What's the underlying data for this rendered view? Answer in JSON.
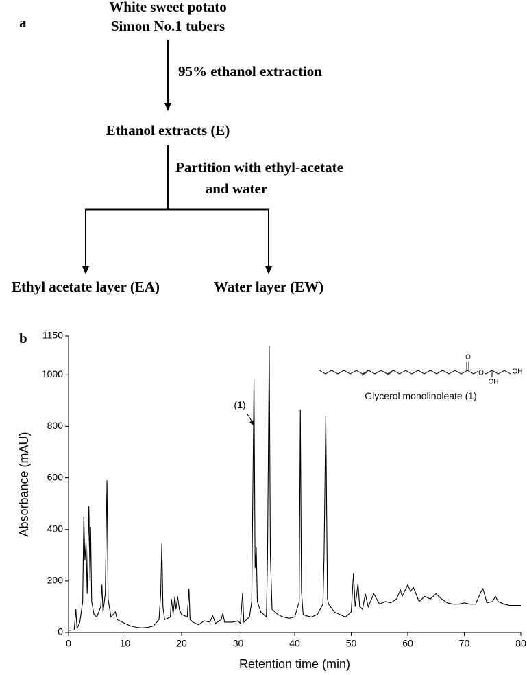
{
  "diagram": {
    "panel_label": "a",
    "nodes": [
      {
        "lines": [
          "White sweet potato",
          "Simon No.1 tubers"
        ]
      },
      {
        "lines": [
          "Ethanol extracts (E)"
        ]
      },
      {
        "lines": [
          "Ethyl acetate layer (EA)"
        ]
      },
      {
        "lines": [
          "Water layer (EW)"
        ]
      }
    ],
    "edges": [
      {
        "lines": [
          "95% ethanol extraction"
        ]
      },
      {
        "lines": [
          "Partition with ethyl-acetate",
          "and water"
        ]
      }
    ]
  },
  "chart_data": {
    "type": "line",
    "panel_label": "b",
    "x_label": "Retention time (min)",
    "y_label": "Absorbance (mAU)",
    "color": "#000000",
    "xlim": [
      0,
      80
    ],
    "xticks": [
      0,
      10,
      20,
      30,
      40,
      50,
      60,
      70,
      80
    ],
    "ylim": [
      0,
      1150
    ],
    "yticks": [
      0,
      200,
      400,
      600,
      800,
      1000,
      1150
    ],
    "x": [
      0,
      1,
      1.3,
      1.5,
      2,
      2.5,
      2.7,
      2.9,
      3.1,
      3.3,
      3.6,
      3.8,
      3.9,
      4.1,
      4.5,
      5,
      5.7,
      5.9,
      6.1,
      6.5,
      6.8,
      7,
      7.5,
      8.3,
      8.6,
      10,
      11,
      12,
      13,
      14,
      15,
      16,
      16.3,
      16.5,
      16.7,
      17,
      18,
      18.2,
      18.5,
      18.8,
      19,
      19.3,
      19.6,
      20,
      21,
      21.3,
      21.5,
      22,
      23,
      24,
      25,
      25.5,
      26,
      27,
      27.3,
      27.6,
      29,
      30,
      30.4,
      30.8,
      31,
      32,
      32.4,
      32.8,
      33,
      33.2,
      33.4,
      34,
      35,
      35.2,
      35.5,
      35.7,
      36,
      37,
      38,
      39,
      40,
      40.8,
      41,
      41.2,
      41.5,
      42,
      43,
      44,
      45,
      45.2,
      45.5,
      45.8,
      46,
      47,
      48,
      49,
      50,
      50.4,
      50.7,
      51.2,
      51.5,
      52,
      52.5,
      53,
      54,
      55,
      56,
      57,
      58,
      58.7,
      59,
      60,
      60.5,
      61,
      62,
      63,
      64,
      65,
      66,
      67,
      68,
      69,
      70,
      71,
      72,
      73,
      73.3,
      74,
      75,
      75.5,
      76,
      77,
      78,
      80
    ],
    "values": [
      8,
      10,
      90,
      15,
      40,
      120,
      450,
      280,
      350,
      150,
      490,
      200,
      410,
      120,
      70,
      60,
      100,
      185,
      80,
      150,
      590,
      130,
      60,
      80,
      50,
      35,
      25,
      20,
      18,
      20,
      25,
      50,
      150,
      345,
      100,
      50,
      60,
      130,
      70,
      140,
      90,
      140,
      90,
      70,
      60,
      170,
      50,
      40,
      30,
      45,
      40,
      65,
      35,
      50,
      75,
      40,
      40,
      45,
      35,
      155,
      40,
      60,
      120,
      985,
      250,
      330,
      120,
      80,
      60,
      300,
      1110,
      300,
      90,
      70,
      60,
      55,
      60,
      120,
      865,
      160,
      70,
      65,
      60,
      70,
      110,
      300,
      840,
      130,
      110,
      80,
      70,
      60,
      80,
      230,
      100,
      190,
      100,
      90,
      150,
      100,
      150,
      110,
      120,
      115,
      130,
      165,
      140,
      185,
      160,
      175,
      120,
      140,
      130,
      150,
      130,
      115,
      110,
      110,
      115,
      110,
      110,
      160,
      170,
      115,
      120,
      140,
      120,
      110,
      105,
      105
    ],
    "peak_label": [
      "(",
      "1",
      ")"
    ],
    "structure_caption": [
      "Glycerol monolinoleate (",
      "1",
      ")"
    ],
    "structure_atoms": [
      "O",
      "O",
      "OH",
      "OH"
    ]
  }
}
